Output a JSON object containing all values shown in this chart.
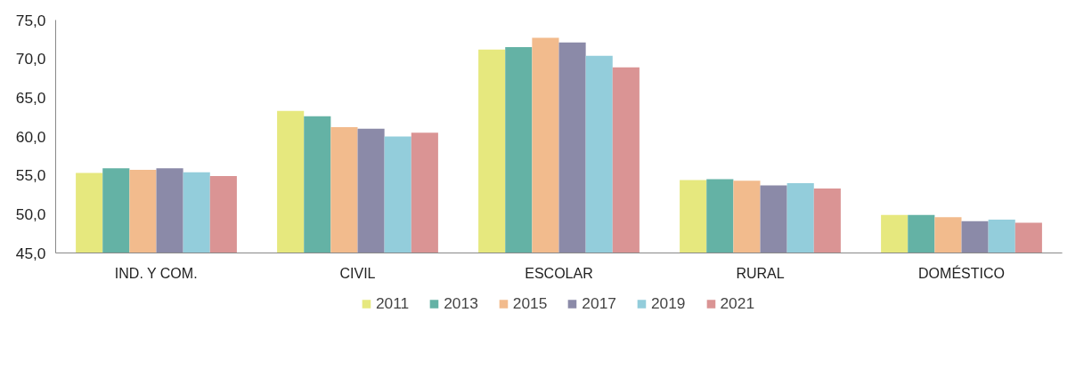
{
  "chart_data": {
    "type": "bar",
    "categories": [
      "IND. Y COM.",
      "CIVIL",
      "ESCOLAR",
      "RURAL",
      "DOMÉSTICO"
    ],
    "series": [
      {
        "name": "2011",
        "color": "#e6e87e",
        "values": [
          55.3,
          63.3,
          71.2,
          54.4,
          49.9
        ]
      },
      {
        "name": "2013",
        "color": "#64b2a5",
        "values": [
          55.9,
          62.6,
          71.5,
          54.5,
          49.9
        ]
      },
      {
        "name": "2015",
        "color": "#f2bb8d",
        "values": [
          55.7,
          61.2,
          72.7,
          54.3,
          49.6
        ]
      },
      {
        "name": "2017",
        "color": "#8b8aa8",
        "values": [
          55.9,
          61.0,
          72.1,
          53.7,
          49.1
        ]
      },
      {
        "name": "2019",
        "color": "#93cddb",
        "values": [
          55.4,
          60.0,
          70.4,
          54.0,
          49.3
        ]
      },
      {
        "name": "2021",
        "color": "#da9494",
        "values": [
          54.9,
          60.5,
          68.9,
          53.3,
          48.9
        ]
      }
    ],
    "ylim": [
      45,
      75
    ],
    "yticks": [
      {
        "value": 45,
        "label": "45,0"
      },
      {
        "value": 50,
        "label": "50,0"
      },
      {
        "value": 55,
        "label": "55,0"
      },
      {
        "value": 60,
        "label": "60,0"
      },
      {
        "value": 65,
        "label": "65,0"
      },
      {
        "value": 70,
        "label": "70,0"
      },
      {
        "value": 75,
        "label": "75,0"
      }
    ],
    "grid": false,
    "legend": "bottom"
  }
}
